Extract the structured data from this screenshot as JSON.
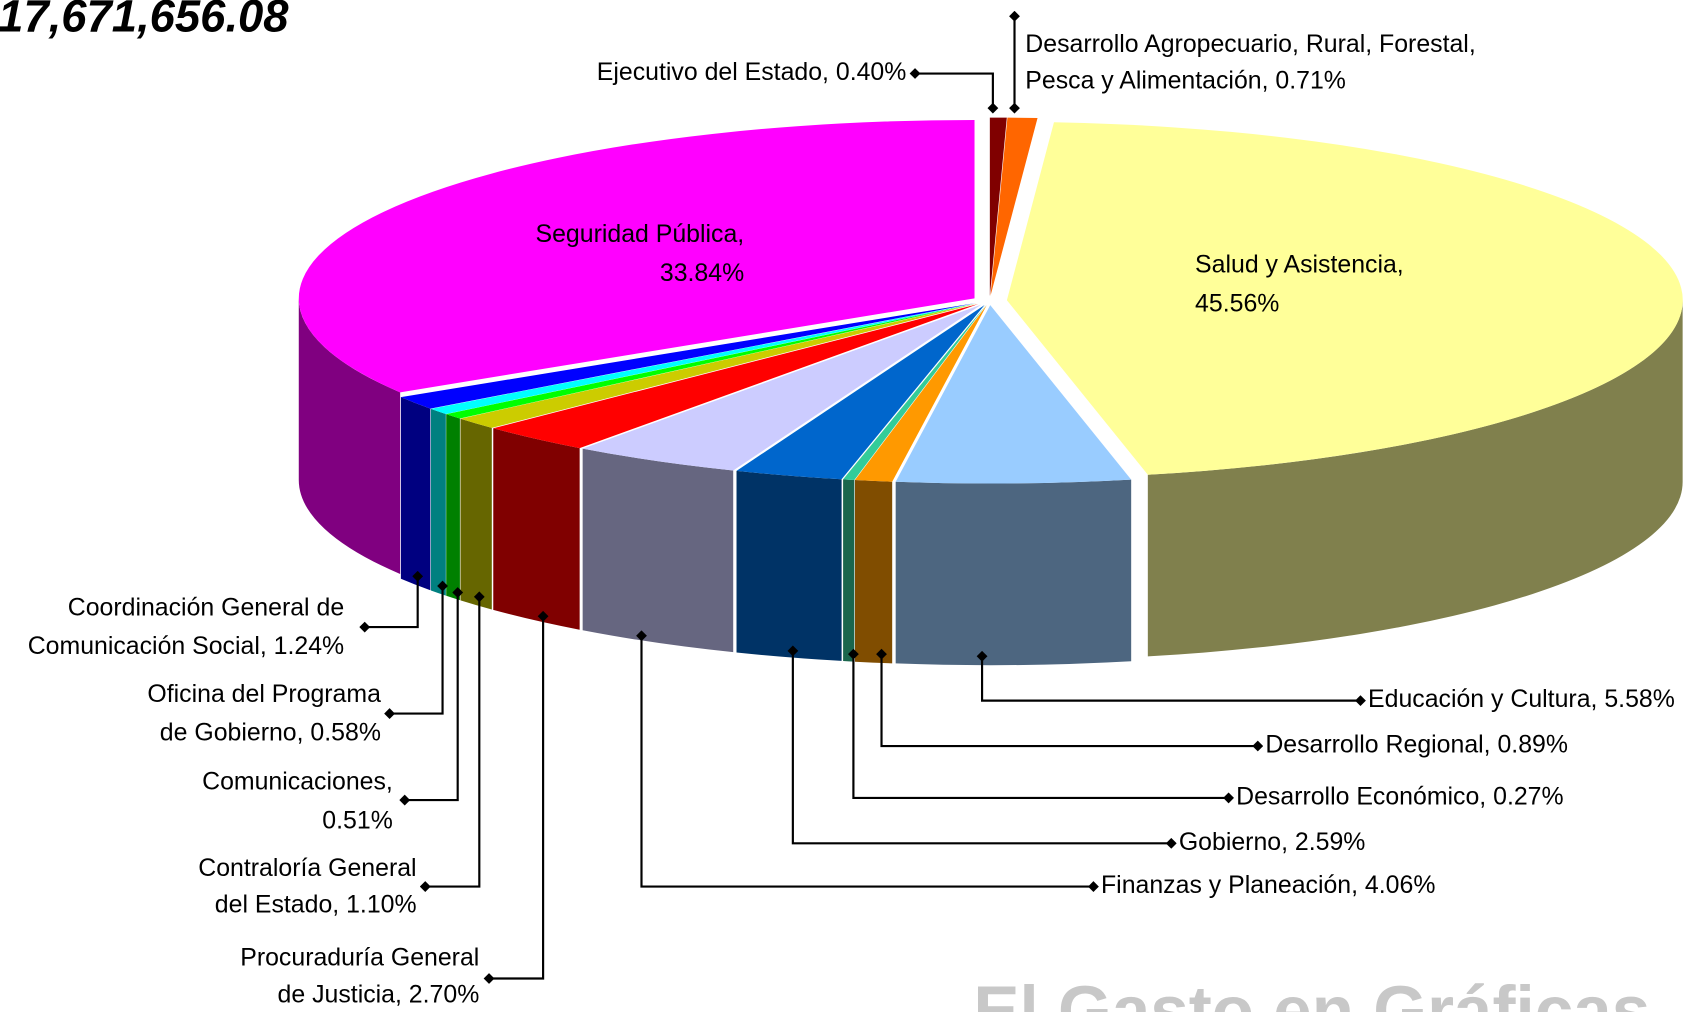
{
  "chart_data": {
    "type": "pie",
    "title": "17,671,656.08",
    "watermark": "El Gasto en Gráficas",
    "categories": [
      "Ejecutivo del Estado",
      "Desarrollo Agropecuario, Rural, Forestal, Pesca y Alimentación",
      "Salud y Asistencia",
      "Educación y Cultura",
      "Desarrollo Regional",
      "Desarrollo Económico",
      "Gobierno",
      "Finanzas y Planeación",
      "Procuraduría General de Justicia",
      "Contraloría General del Estado",
      "Comunicaciones",
      "Oficina del Programa de Gobierno",
      "Coordinación General de Comunicación Social",
      "Seguridad Pública"
    ],
    "values": [
      0.4,
      0.71,
      45.56,
      5.58,
      0.89,
      0.27,
      2.59,
      4.06,
      2.7,
      1.1,
      0.51,
      0.58,
      1.24,
      33.84
    ],
    "labels": [
      [
        "Ejecutivo del Estado, 0.40%"
      ],
      [
        "Desarrollo Agropecuario, Rural, Forestal,",
        "Pesca y Alimentación, 0.71%"
      ],
      [
        "Salud y Asistencia,",
        "45.56%"
      ],
      [
        "Educación y Cultura, 5.58%"
      ],
      [
        "Desarrollo Regional, 0.89%"
      ],
      [
        "Desarrollo Económico, 0.27%"
      ],
      [
        "Gobierno, 2.59%"
      ],
      [
        "Finanzas y Planeación, 4.06%"
      ],
      [
        "Procuraduría General",
        "de Justicia, 2.70%"
      ],
      [
        "Contraloría General",
        "del Estado, 1.10%"
      ],
      [
        "Comunicaciones,",
        "0.51%"
      ],
      [
        "Oficina del Programa",
        "de Gobierno, 0.58%"
      ],
      [
        "Coordinación General de",
        "Comunicación Social, 1.24%"
      ],
      [
        "Seguridad Pública,",
        "33.84%"
      ]
    ],
    "colors": [
      "#800000",
      "#ff6600",
      "#ffff99",
      "#99ccff",
      "#ff9900",
      "#33cc99",
      "#0066cc",
      "#ccccff",
      "#ff0000",
      "#cccc00",
      "#00ff00",
      "#00ffff",
      "#0000ff",
      "#ff00ff"
    ]
  }
}
